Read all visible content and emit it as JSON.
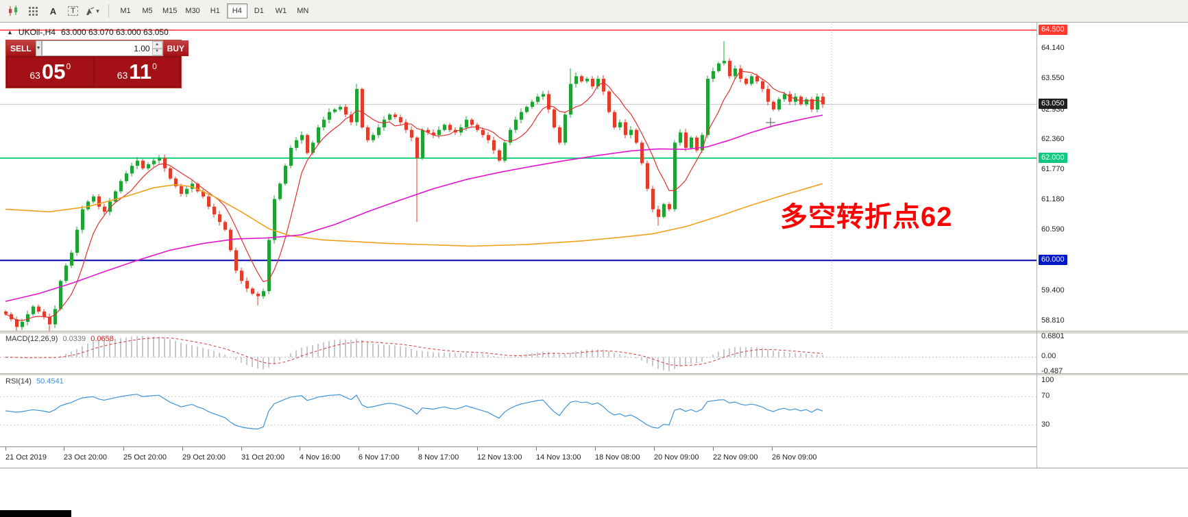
{
  "colors": {
    "up": "#1fa335",
    "down": "#e23c2a",
    "ma_fast": "#e03131",
    "ma_mid": "#e214ce",
    "ma_slow": "#f0a11c",
    "macd_hist": "#c9c9c9",
    "macd_signal": "#d33a3a",
    "rsi": "#3d93d8",
    "level_resistance": "#ff3232",
    "level_pivot": "#17d17e",
    "level_support": "#0000aa",
    "badge_red": "#ff3b30",
    "badge_green": "#12c77f",
    "badge_blue": "#0018c8",
    "badge_black": "#1f1f1f",
    "panel_red": "#a31116",
    "panel_red_dark": "#8c0d12"
  },
  "glyphs": {
    "collapse_up": "▲",
    "caret_down": "▼",
    "spin_up": "▲",
    "spin_down": "▼",
    "letter_a": "A",
    "letter_t": "T"
  },
  "toolbar": {
    "timeframes": [
      "M1",
      "M5",
      "M15",
      "M30",
      "H1",
      "H4",
      "D1",
      "W1",
      "MN"
    ],
    "active_timeframe": "H4",
    "icons": [
      "candlestick-chart",
      "indicator-grid",
      "text-annotation",
      "text-label",
      "drawing-tools"
    ]
  },
  "chart": {
    "title_symbol": "UKOil-,H4",
    "ohlc": "63.000 63.070 63.000 63.050",
    "trade_panel": {
      "sell_label": "SELL",
      "buy_label": "BUY",
      "volume": "1.00",
      "sell_small": "63",
      "sell_big": "05",
      "sell_sup": "0",
      "buy_small": "63",
      "buy_big": "11",
      "buy_sup": "0"
    },
    "annotation": {
      "text": "多空转折点62",
      "color": "#ff0000"
    },
    "current_price": {
      "text": "63.050",
      "price": 63.05
    }
  },
  "price_axis": {
    "items": [
      {
        "text": "64.500",
        "price": 64.5,
        "style": "red"
      },
      {
        "text": "64.140",
        "price": 64.14,
        "style": "plain"
      },
      {
        "text": "63.550",
        "price": 63.55,
        "style": "plain"
      },
      {
        "text": "63.050",
        "price": 63.05,
        "style": "black"
      },
      {
        "text": "62.930",
        "price": 62.93,
        "style": "plain"
      },
      {
        "text": "62.360",
        "price": 62.36,
        "style": "plain"
      },
      {
        "text": "62.000",
        "price": 62.0,
        "style": "green"
      },
      {
        "text": "61.770",
        "price": 61.77,
        "style": "plain"
      },
      {
        "text": "61.180",
        "price": 61.18,
        "style": "plain"
      },
      {
        "text": "60.590",
        "price": 60.59,
        "style": "plain"
      },
      {
        "text": "60.000",
        "price": 60.0,
        "style": "blue"
      },
      {
        "text": "59.400",
        "price": 59.4,
        "style": "plain"
      },
      {
        "text": "58.810",
        "price": 58.81,
        "style": "plain"
      }
    ]
  },
  "time_axis": {
    "items": [
      {
        "t": "21 Oct 2019",
        "x": 8
      },
      {
        "t": "23 Oct 20:00",
        "x": 93
      },
      {
        "t": "25 Oct 20:00",
        "x": 180
      },
      {
        "t": "29 Oct 20:00",
        "x": 266
      },
      {
        "t": "31 Oct 20:00",
        "x": 352
      },
      {
        "t": "4 Nov 16:00",
        "x": 437
      },
      {
        "t": "6 Nov 17:00",
        "x": 523
      },
      {
        "t": "8 Nov 17:00",
        "x": 610
      },
      {
        "t": "12 Nov 13:00",
        "x": 696
      },
      {
        "t": "14 Nov 13:00",
        "x": 782
      },
      {
        "t": "18 Nov 08:00",
        "x": 868
      },
      {
        "t": "20 Nov 09:00",
        "x": 954
      },
      {
        "t": "22 Nov 09:00",
        "x": 1040
      },
      {
        "t": "26 Nov 09:00",
        "x": 1126
      }
    ]
  },
  "indicators": {
    "macd": {
      "name": "MACD(12,26,9)",
      "value_main": "0.0339",
      "value_signal": "0.0658",
      "axis_top": "0.6801",
      "axis_zero": "0.00",
      "axis_bottom": "-0.487"
    },
    "rsi": {
      "name": "RSI(14)",
      "value": "50.4541",
      "axis": [
        "100",
        "70",
        "30"
      ],
      "levels": [
        70,
        30
      ]
    }
  },
  "chart_data": {
    "type": "candlestick",
    "symbol": "UKOil-",
    "timeframe": "H4",
    "ylim": [
      58.65,
      64.65
    ],
    "levels": {
      "resistance": 64.5,
      "pivot": 62.0,
      "support": 60.0
    },
    "first_open": 59.0,
    "closes": [
      58.95,
      58.85,
      58.7,
      58.8,
      58.95,
      59.1,
      59.0,
      58.9,
      58.75,
      59.05,
      59.6,
      59.9,
      60.15,
      60.6,
      61.0,
      61.15,
      61.25,
      61.05,
      60.95,
      61.15,
      61.35,
      61.55,
      61.7,
      61.85,
      61.95,
      61.8,
      61.88,
      61.95,
      62.0,
      61.8,
      61.6,
      61.45,
      61.3,
      61.4,
      61.5,
      61.35,
      61.25,
      61.05,
      60.9,
      60.75,
      60.6,
      60.2,
      59.8,
      59.6,
      59.45,
      59.35,
      59.3,
      59.4,
      60.4,
      61.2,
      61.5,
      61.85,
      62.2,
      62.35,
      62.45,
      62.1,
      62.3,
      62.6,
      62.75,
      62.9,
      62.95,
      63.0,
      62.85,
      62.7,
      63.35,
      62.6,
      62.35,
      62.45,
      62.6,
      62.75,
      62.85,
      62.8,
      62.7,
      62.55,
      62.4,
      62.0,
      62.55,
      62.5,
      62.45,
      62.55,
      62.65,
      62.55,
      62.5,
      62.6,
      62.75,
      62.65,
      62.55,
      62.45,
      62.35,
      62.15,
      61.95,
      62.3,
      62.55,
      62.75,
      62.9,
      63.0,
      63.1,
      63.2,
      63.25,
      62.95,
      62.6,
      62.3,
      62.85,
      63.45,
      63.6,
      63.5,
      63.55,
      63.4,
      63.55,
      63.3,
      62.9,
      62.6,
      62.7,
      62.45,
      62.55,
      62.3,
      61.9,
      61.4,
      61.0,
      60.85,
      61.1,
      61.0,
      62.3,
      62.5,
      62.2,
      62.4,
      62.15,
      62.45,
      63.55,
      63.7,
      63.85,
      63.9,
      63.6,
      63.75,
      63.55,
      63.45,
      63.6,
      63.5,
      63.35,
      63.1,
      62.95,
      63.15,
      63.25,
      63.1,
      63.2,
      63.05,
      63.15,
      62.95,
      63.2,
      63.05
    ],
    "wick_overrides": {
      "2": {
        "l": 58.58
      },
      "8": {
        "l": 58.6
      },
      "46": {
        "l": 59.12
      },
      "64": {
        "h": 63.45
      },
      "75": {
        "l": 60.75
      },
      "103": {
        "h": 63.75
      },
      "119": {
        "l": 60.68
      },
      "131": {
        "h": 64.28
      }
    },
    "ma_slow_anchors": [
      [
        0,
        61.0
      ],
      [
        8,
        60.95
      ],
      [
        15,
        61.05
      ],
      [
        22,
        61.25
      ],
      [
        27,
        61.42
      ],
      [
        31,
        61.48
      ],
      [
        34,
        61.44
      ],
      [
        38,
        61.25
      ],
      [
        43,
        60.95
      ],
      [
        48,
        60.62
      ],
      [
        52,
        60.48
      ],
      [
        58,
        60.4
      ],
      [
        70,
        60.33
      ],
      [
        85,
        60.28
      ],
      [
        95,
        60.31
      ],
      [
        105,
        60.38
      ],
      [
        112,
        60.45
      ],
      [
        118,
        60.52
      ],
      [
        124,
        60.66
      ],
      [
        130,
        60.86
      ],
      [
        136,
        61.08
      ],
      [
        142,
        61.28
      ],
      [
        149,
        61.5
      ]
    ],
    "ma_mid_anchors": [
      [
        0,
        59.2
      ],
      [
        6,
        59.35
      ],
      [
        12,
        59.55
      ],
      [
        18,
        59.78
      ],
      [
        24,
        60.0
      ],
      [
        30,
        60.2
      ],
      [
        36,
        60.33
      ],
      [
        42,
        60.42
      ],
      [
        48,
        60.44
      ],
      [
        54,
        60.5
      ],
      [
        60,
        60.7
      ],
      [
        66,
        60.95
      ],
      [
        72,
        61.18
      ],
      [
        78,
        61.4
      ],
      [
        84,
        61.58
      ],
      [
        90,
        61.72
      ],
      [
        96,
        61.84
      ],
      [
        102,
        61.95
      ],
      [
        108,
        62.05
      ],
      [
        114,
        62.14
      ],
      [
        119,
        62.18
      ],
      [
        124,
        62.17
      ],
      [
        128,
        62.22
      ],
      [
        132,
        62.35
      ],
      [
        136,
        62.5
      ],
      [
        140,
        62.63
      ],
      [
        144,
        62.73
      ],
      [
        147,
        62.8
      ],
      [
        149,
        62.84
      ]
    ]
  }
}
